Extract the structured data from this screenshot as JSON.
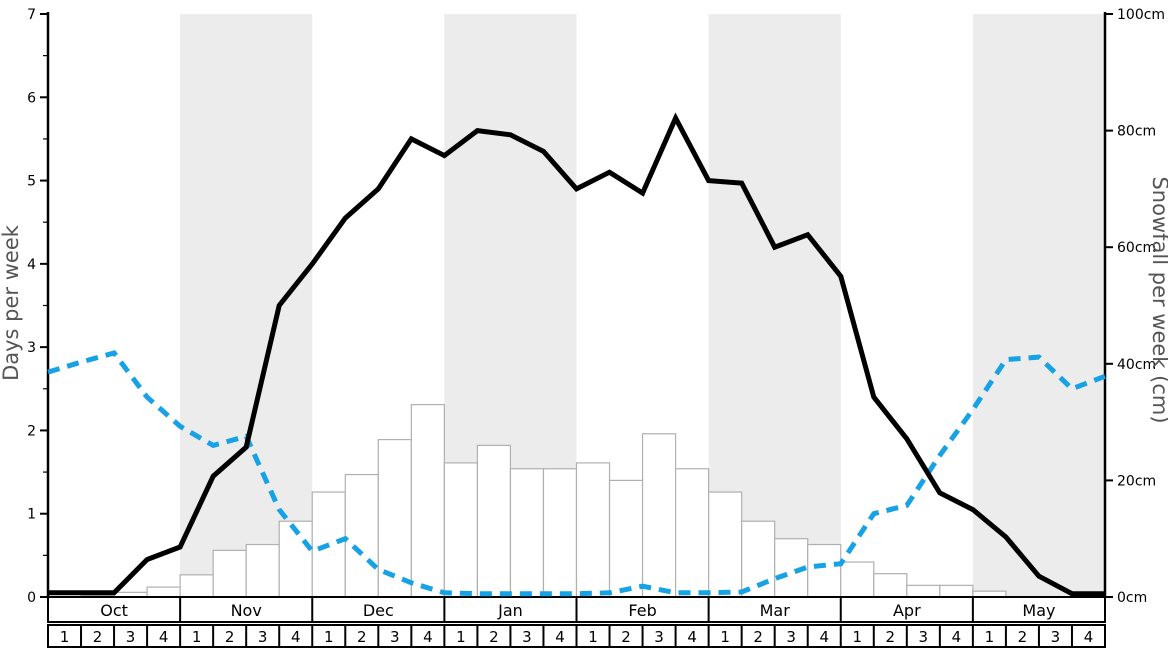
{
  "chart_data": {
    "type": "line+bar",
    "title": "",
    "left_axis": {
      "label": "Days per week",
      "min": 0,
      "max": 7,
      "tick_labels": [
        "0",
        "1",
        "2",
        "3",
        "4",
        "5",
        "6",
        "7"
      ],
      "minor_tick_step": 0.5
    },
    "right_axis": {
      "label": "Snowfall per week (cm)",
      "min": 0,
      "max": 100,
      "tick_values": [
        0,
        20,
        40,
        60,
        80,
        100
      ],
      "tick_labels": [
        "0cm",
        "20cm",
        "40cm",
        "60cm",
        "80cm",
        "100cm"
      ]
    },
    "months": [
      {
        "label": "Oct",
        "shaded": false
      },
      {
        "label": "Nov",
        "shaded": true
      },
      {
        "label": "Dec",
        "shaded": false
      },
      {
        "label": "Jan",
        "shaded": true
      },
      {
        "label": "Feb",
        "shaded": false
      },
      {
        "label": "Mar",
        "shaded": true
      },
      {
        "label": "Apr",
        "shaded": false
      },
      {
        "label": "May",
        "shaded": true
      }
    ],
    "week_labels": [
      "1",
      "2",
      "3",
      "4"
    ],
    "series": [
      {
        "name": "snowfall-bars",
        "type": "bar",
        "axis": "right",
        "unit": "cm",
        "values": [
          0,
          0.2,
          0.8,
          1.7,
          3.8,
          8,
          9,
          13,
          18,
          21,
          27,
          33,
          23,
          26,
          22,
          22,
          23,
          20,
          28,
          22,
          18,
          13,
          10,
          9,
          6,
          4,
          2,
          2,
          1,
          0,
          0,
          0
        ]
      },
      {
        "name": "days-line-black-solid",
        "type": "line",
        "axis": "left",
        "unit": "days",
        "values": [
          0.05,
          0.05,
          0.05,
          0.45,
          0.6,
          1.45,
          1.8,
          3.5,
          4.0,
          4.55,
          4.9,
          5.5,
          5.3,
          5.6,
          5.55,
          5.35,
          4.9,
          5.1,
          4.85,
          5.75,
          5.0,
          4.97,
          4.2,
          4.35,
          3.85,
          2.4,
          1.9,
          1.25,
          1.05,
          0.72,
          0.25,
          0.04,
          0.04
        ]
      },
      {
        "name": "days-line-blue-dashed",
        "type": "line",
        "axis": "left",
        "unit": "days",
        "values": [
          2.7,
          2.82,
          2.93,
          2.4,
          2.05,
          1.82,
          1.93,
          1.05,
          0.55,
          0.7,
          0.33,
          0.17,
          0.05,
          0.04,
          0.04,
          0.04,
          0.04,
          0.05,
          0.13,
          0.05,
          0.05,
          0.06,
          0.22,
          0.36,
          0.4,
          1.0,
          1.1,
          1.7,
          2.25,
          2.85,
          2.88,
          2.5,
          2.65
        ]
      }
    ],
    "colors": {
      "black_line": "#000000",
      "blue_line": "#17a2e6",
      "bar_fill": "#ffffff",
      "bar_stroke": "#b0b0b0",
      "band_gray": "#ececec",
      "axis_title": "#555555",
      "frame": "#000000"
    },
    "layout": {
      "grid": "off",
      "legend": "none",
      "shaded_month_bands": "alternating, starting with second month"
    }
  }
}
